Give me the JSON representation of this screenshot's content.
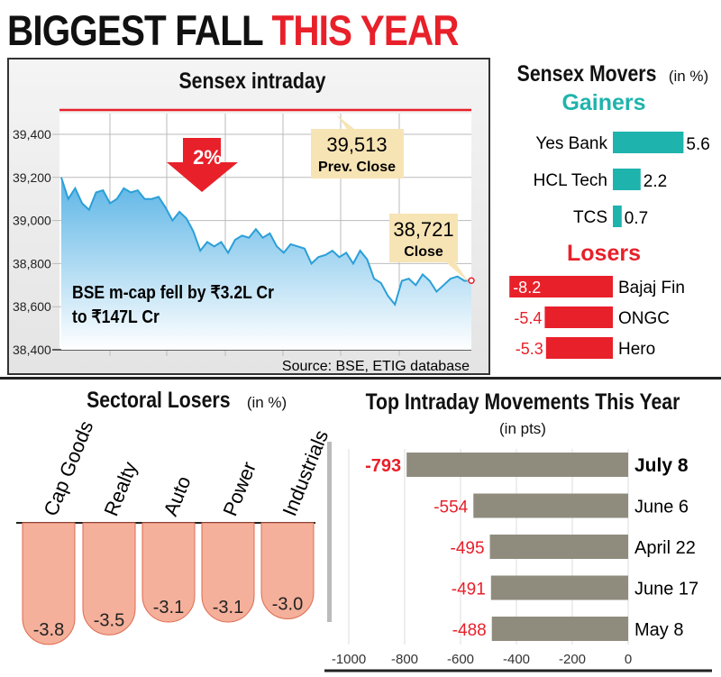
{
  "headline": {
    "black": "BIGGEST FALL",
    "red": "THIS YEAR"
  },
  "colors": {
    "red": "#e8202a",
    "teal": "#1fb3ad",
    "gray_bar": "#8f8c7e",
    "salmon": "#f4b09a",
    "blue_line": "#2a9fd8"
  },
  "chart_data": [
    {
      "type": "area",
      "title": "Sensex intraday",
      "ylim": [
        38400,
        39500
      ],
      "yticks": [
        "39,400",
        "39,200",
        "39,000",
        "38,800",
        "38,600",
        "38,400"
      ],
      "values": [
        39200,
        39100,
        39150,
        39080,
        39050,
        39130,
        39140,
        39080,
        39100,
        39150,
        39130,
        39140,
        39100,
        39100,
        39110,
        39060,
        39000,
        39040,
        39010,
        38950,
        38860,
        38900,
        38880,
        38900,
        38850,
        38910,
        38930,
        38920,
        38960,
        38920,
        38940,
        38880,
        38850,
        38890,
        38880,
        38870,
        38800,
        38830,
        38840,
        38860,
        38830,
        38850,
        38800,
        38860,
        38820,
        38730,
        38710,
        38650,
        38610,
        38720,
        38730,
        38700,
        38750,
        38720,
        38670,
        38700,
        38730,
        38740,
        38720,
        38721
      ],
      "prev_close": 39513,
      "prev_close_label": "39,513",
      "prev_close_text": "Prev. Close",
      "close_label": "38,721",
      "close_text": "Close",
      "arrow_label": "2%",
      "annotation": [
        "BSE m-cap fell by ₹3.2L Cr",
        "to ₹147L Cr"
      ],
      "source": "Source: BSE, ETIG database"
    },
    {
      "type": "bar",
      "title": "Sensex Movers",
      "unit": "(in %)",
      "gainers_title": "Gainers",
      "losers_title": "Losers",
      "gainers": [
        {
          "name": "Yes Bank",
          "value": 5.6,
          "label": "5.6"
        },
        {
          "name": "HCL Tech",
          "value": 2.2,
          "label": "2.2"
        },
        {
          "name": "TCS",
          "value": 0.7,
          "label": "0.7"
        }
      ],
      "losers": [
        {
          "name": "Bajaj Fin",
          "value": -8.2,
          "label": "-8.2"
        },
        {
          "name": "ONGC",
          "value": -5.4,
          "label": "-5.4"
        },
        {
          "name": "Hero",
          "value": -5.3,
          "label": "-5.3"
        }
      ]
    },
    {
      "type": "bar",
      "title": "Sectoral Losers",
      "unit": "(in %)",
      "categories": [
        "Cap Goods",
        "Realty",
        "Auto",
        "Power",
        "Industrials"
      ],
      "values": [
        -3.8,
        -3.5,
        -3.1,
        -3.1,
        -3.0
      ],
      "labels": [
        "-3.8",
        "-3.5",
        "-3.1",
        "-3.1",
        "-3.0"
      ]
    },
    {
      "type": "bar",
      "title": "Top Intraday Movements This Year",
      "unit": "(in pts)",
      "xlim": [
        -1000,
        0
      ],
      "xticks": [
        "-1000",
        "-800",
        "-600",
        "-400",
        "-200",
        "0"
      ],
      "categories": [
        "July 8",
        "June 6",
        "April 22",
        "June 17",
        "May 8"
      ],
      "values": [
        -793,
        -554,
        -495,
        -491,
        -488
      ],
      "labels": [
        "-793",
        "-554",
        "-495",
        "-491",
        "-488"
      ]
    }
  ]
}
